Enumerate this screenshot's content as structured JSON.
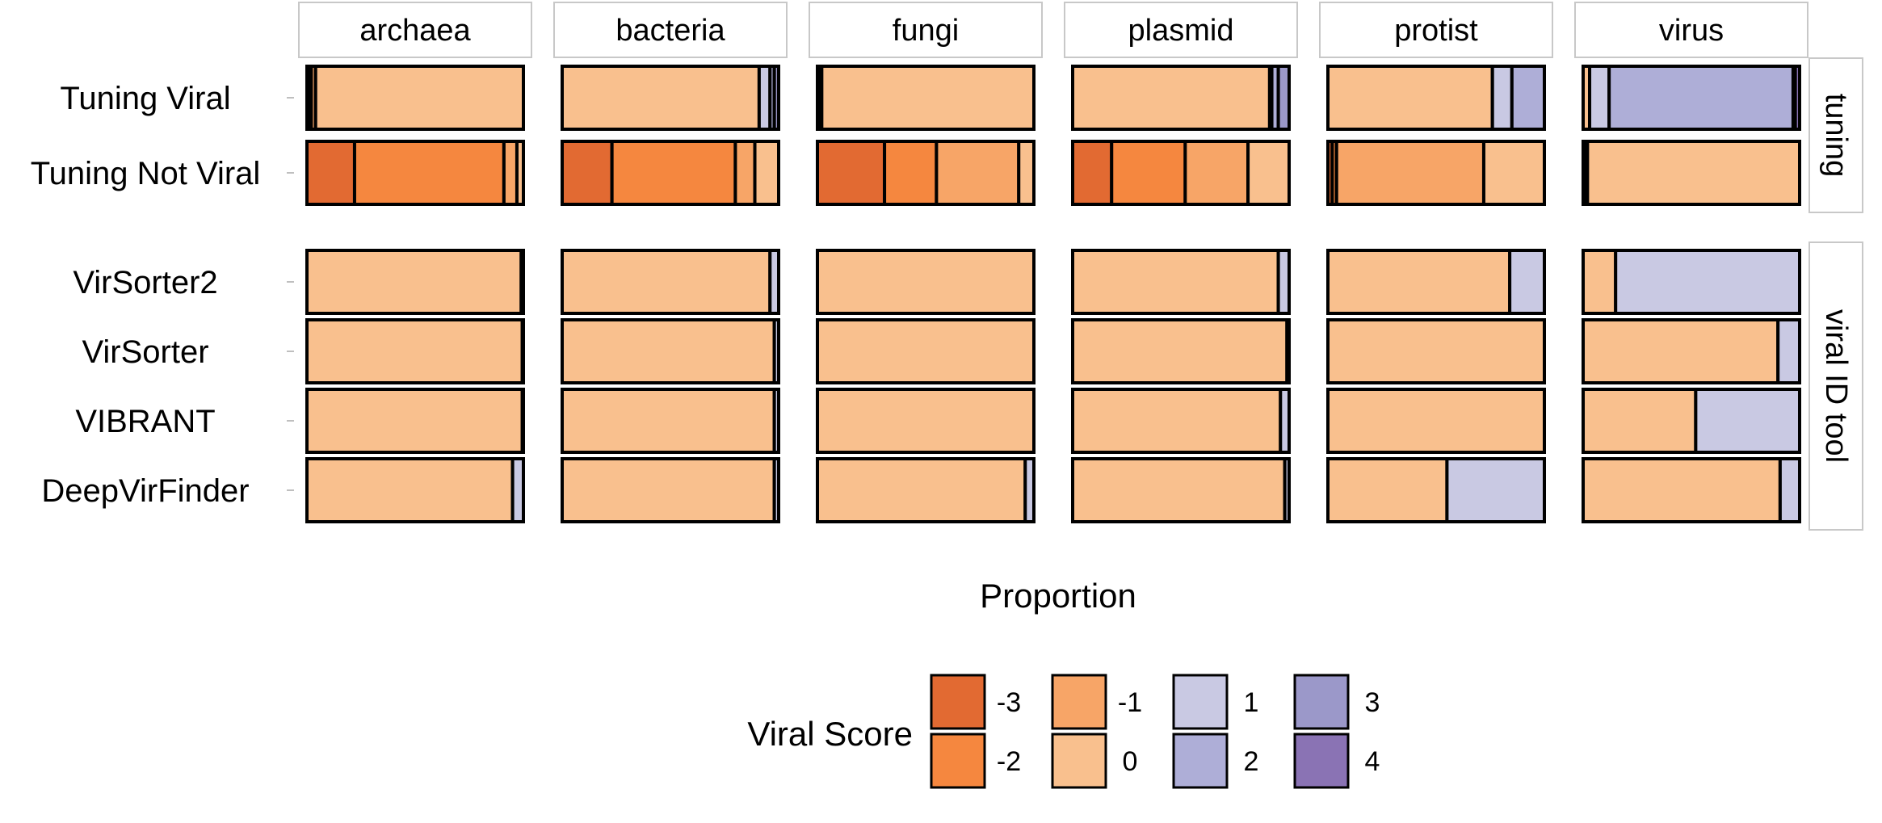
{
  "chart_data": {
    "type": "bar",
    "orientation": "horizontal-stacked-proportion",
    "xlabel": "Proportion",
    "xlim": [
      0,
      1
    ],
    "columns": [
      "archaea",
      "bacteria",
      "fungi",
      "plasmid",
      "protist",
      "virus"
    ],
    "groups": [
      {
        "name": "tuning",
        "rows": [
          "Tuning Viral",
          "Tuning Not Viral"
        ]
      },
      {
        "name": "viral ID tool",
        "rows": [
          "VirSorter2",
          "VirSorter",
          "VIBRANT",
          "DeepVirFinder"
        ]
      }
    ],
    "legend": {
      "title": "Viral Score",
      "position": "bottom",
      "items": [
        {
          "label": "-3",
          "color": "#e26a32"
        },
        {
          "label": "-2",
          "color": "#f5873f"
        },
        {
          "label": "-1",
          "color": "#f7a567"
        },
        {
          "label": "0",
          "color": "#f9c08e"
        },
        {
          "label": "1",
          "color": "#c9c9e3"
        },
        {
          "label": "2",
          "color": "#aeaed7"
        },
        {
          "label": "3",
          "color": "#9b98c9"
        },
        {
          "label": "4",
          "color": "#8a73b4"
        }
      ]
    },
    "score_order": [
      "-3",
      "-2",
      "-1",
      "0",
      "1",
      "2",
      "3",
      "4"
    ],
    "data": {
      "Tuning Viral": {
        "archaea": {
          "-3": 0.01,
          "-2": 0.01,
          "-1": 0.02,
          "0": 0.96
        },
        "bacteria": {
          "1": 0.05,
          "2": 0.02,
          "3": 0.02,
          "0": 0.91
        },
        "fungi": {
          "-3": 0.01,
          "-2": 0.01,
          "0": 0.98
        },
        "plasmid": {
          "3": 0.05,
          "2": 0.03,
          "1": 0.01,
          "0": 0.91
        },
        "protist": {
          "2": 0.15,
          "1": 0.09,
          "0": 0.76
        },
        "virus": {
          "4": 0.02,
          "3": 0.01,
          "2": 0.85,
          "1": 0.09,
          "0": 0.03
        }
      },
      "Tuning Not Viral": {
        "archaea": {
          "0": 0.03,
          "-1": 0.06,
          "-2": 0.69,
          "-3": 0.22
        },
        "bacteria": {
          "0": 0.11,
          "-1": 0.09,
          "-2": 0.57,
          "-3": 0.23
        },
        "fungi": {
          "0": 0.07,
          "-1": 0.38,
          "-2": 0.24,
          "-3": 0.31
        },
        "plasmid": {
          "0": 0.19,
          "-1": 0.29,
          "-2": 0.34,
          "-3": 0.18
        },
        "protist": {
          "0": 0.28,
          "-1": 0.68,
          "-2": 0.02,
          "-3": 0.02
        },
        "virus": {
          "0": 0.98,
          "-1": 0.01,
          "-3": 0.01
        }
      },
      "VirSorter2": {
        "archaea": {
          "1": 0.01,
          "0": 0.99
        },
        "bacteria": {
          "1": 0.04,
          "0": 0.96
        },
        "fungi": {
          "0": 1.0
        },
        "plasmid": {
          "1": 0.05,
          "0": 0.95
        },
        "protist": {
          "1": 0.16,
          "0": 0.84
        },
        "virus": {
          "1": 0.85,
          "0": 0.15
        }
      },
      "VirSorter": {
        "archaea": {
          "1": 0.005,
          "0": 0.995
        },
        "bacteria": {
          "1": 0.02,
          "0": 0.98
        },
        "fungi": {
          "0": 1.0
        },
        "plasmid": {
          "1": 0.01,
          "0": 0.99
        },
        "protist": {
          "0": 1.0
        },
        "virus": {
          "1": 0.1,
          "0": 0.9
        }
      },
      "VIBRANT": {
        "archaea": {
          "1": 0.005,
          "0": 0.995
        },
        "bacteria": {
          "1": 0.02,
          "0": 0.98
        },
        "fungi": {
          "0": 1.0
        },
        "plasmid": {
          "1": 0.04,
          "0": 0.96
        },
        "protist": {
          "0": 1.0
        },
        "virus": {
          "1": 0.48,
          "0": 0.52
        }
      },
      "DeepVirFinder": {
        "archaea": {
          "1": 0.05,
          "0": 0.95
        },
        "bacteria": {
          "1": 0.02,
          "0": 0.98
        },
        "fungi": {
          "1": 0.04,
          "0": 0.96
        },
        "plasmid": {
          "1": 0.02,
          "0": 0.98
        },
        "protist": {
          "1": 0.45,
          "0": 0.55
        },
        "virus": {
          "1": 0.09,
          "0": 0.91
        }
      }
    }
  }
}
